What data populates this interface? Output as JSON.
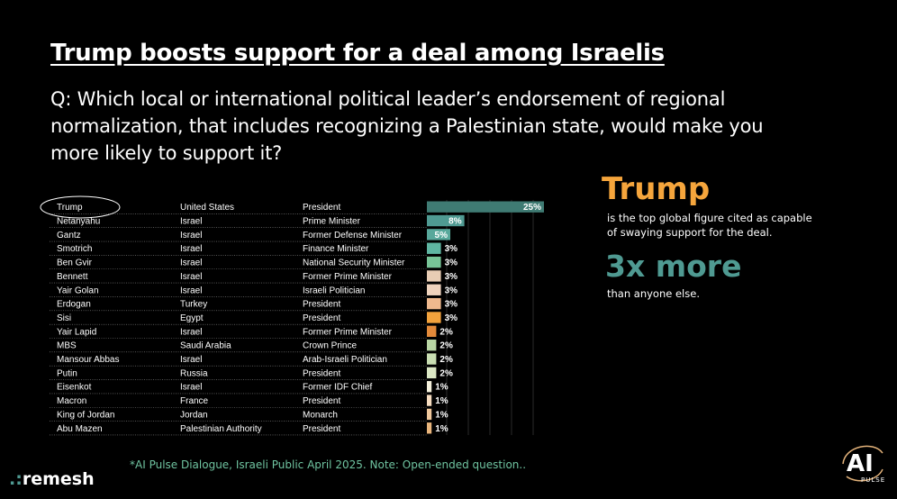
{
  "header": {
    "title": "Trump boosts support for a deal among Israelis",
    "question": "Q: Which local or international political leader’s endorsement of regional normalization, that includes recognizing a Palestinian state, would make you more likely to support it?"
  },
  "chart_data": {
    "type": "bar",
    "orientation": "horizontal",
    "value_suffix": "%",
    "xlim": [
      0,
      25
    ],
    "highlighted_row": "Trump",
    "rows": [
      {
        "name": "Trump",
        "country": "United States",
        "role": "President",
        "value": 25,
        "color": "#3f7b73"
      },
      {
        "name": "Netanyahu",
        "country": "Israel",
        "role": "Prime Minister",
        "value": 8,
        "color": "#4f9a92"
      },
      {
        "name": "Gantz",
        "country": "Israel",
        "role": "Former Defense Minister",
        "value": 5,
        "color": "#58a89b"
      },
      {
        "name": "Smotrich",
        "country": "Israel",
        "role": "Finance Minister",
        "value": 3,
        "color": "#5fb6a2"
      },
      {
        "name": "Ben Gvir",
        "country": "Israel",
        "role": "National Security Minister",
        "value": 3,
        "color": "#77c497"
      },
      {
        "name": "Bennett",
        "country": "Israel",
        "role": "Former Prime Minister",
        "value": 3,
        "color": "#e8cdb4"
      },
      {
        "name": "Yair Golan",
        "country": "Israel",
        "role": "Israeli Politician",
        "value": 3,
        "color": "#efd3bd"
      },
      {
        "name": "Erdogan",
        "country": "Turkey",
        "role": "President",
        "value": 3,
        "color": "#efb98e"
      },
      {
        "name": "Sisi",
        "country": "Egypt",
        "role": "President",
        "value": 3,
        "color": "#f2a23c"
      },
      {
        "name": "Yair Lapid",
        "country": "Israel",
        "role": "Former Prime Minister",
        "value": 2,
        "color": "#e38a3a"
      },
      {
        "name": "MBS",
        "country": "Saudi Arabia",
        "role": "Crown Prince",
        "value": 2,
        "color": "#b9d6a4"
      },
      {
        "name": "Mansour Abbas",
        "country": "Israel",
        "role": "Arab-Israeli Politician",
        "value": 2,
        "color": "#c9deb2"
      },
      {
        "name": "Putin",
        "country": "Russia",
        "role": "President",
        "value": 2,
        "color": "#dbe7c4"
      },
      {
        "name": "Eisenkot",
        "country": "Israel",
        "role": "Former IDF Chief",
        "value": 1,
        "color": "#f4f0dc"
      },
      {
        "name": "Macron",
        "country": "France",
        "role": "President",
        "value": 1,
        "color": "#f6dcc0"
      },
      {
        "name": "King of Jordan",
        "country": "Jordan",
        "role": "Monarch",
        "value": 1,
        "color": "#f0c89c"
      },
      {
        "name": "Abu Mazen",
        "country": "Palestinian Authority",
        "role": "President",
        "value": 1,
        "color": "#e9b57c"
      }
    ]
  },
  "callout": {
    "headline": "Trump",
    "headline_color": "#f5a53c",
    "text": "is the top global figure cited as capable of swaying support for the deal.",
    "headline2": "3x more",
    "headline2_color": "#4f9a92",
    "text2": "than anyone else."
  },
  "footnote": "*AI Pulse Dialogue, Israeli Public April 2025.  Note: Open-ended question..",
  "brand": {
    "name": "remesh",
    "logo_text": "AI",
    "logo_sub": "PULSE"
  }
}
